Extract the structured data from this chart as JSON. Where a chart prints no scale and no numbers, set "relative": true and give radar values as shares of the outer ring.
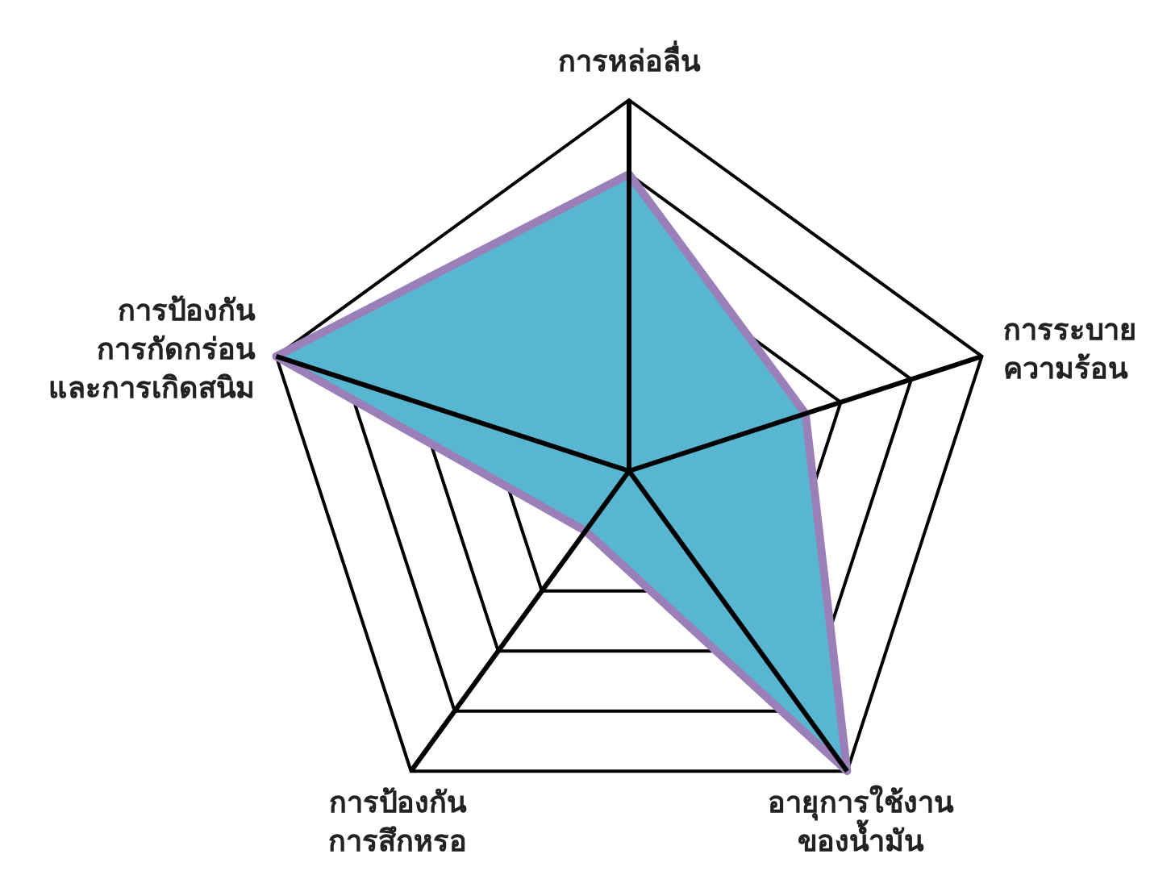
{
  "chart_data": {
    "type": "radar",
    "relative": true,
    "categories": [
      "การหล่อลื่น",
      "การระบาย\nความร้อน",
      "อายุการใช้งาน\nของน้ำมัน",
      "การป้องกัน\nการสึกหรอ",
      "การป้องกัน\nการกัดกร่อน\nและการเกิดสนิม"
    ],
    "series": [
      {
        "color": "#58b6d0",
        "values": [
          0.8,
          0.5,
          1,
          0.2,
          1
        ]
      }
    ],
    "grid": true
  }
}
